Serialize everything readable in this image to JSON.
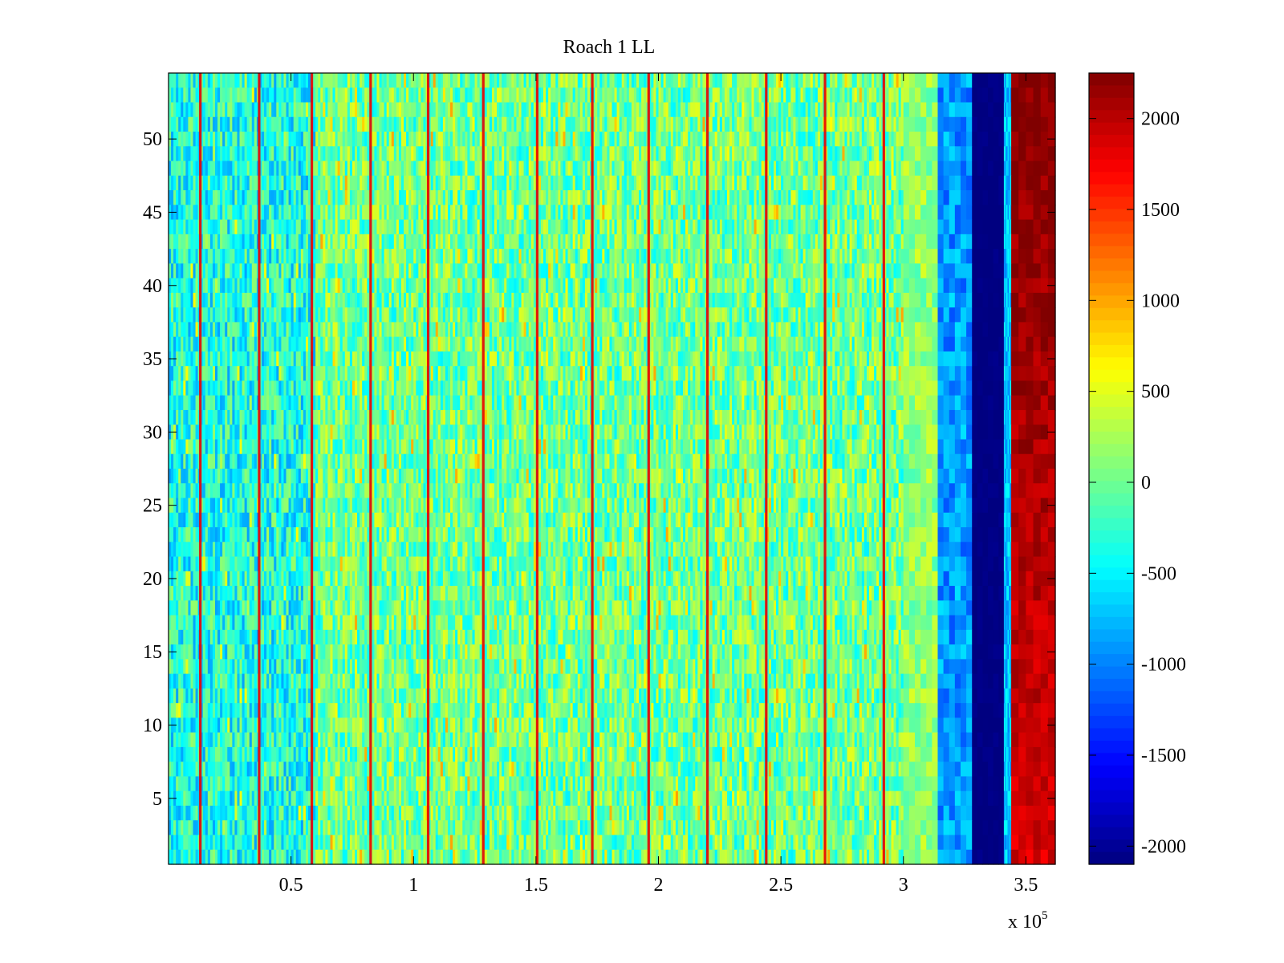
{
  "chart_data": {
    "type": "heatmap",
    "title": "Roach 1 LL",
    "xlabel": "",
    "ylabel": "",
    "x_range": [
      0,
      362000
    ],
    "y_range": [
      0.5,
      54.5
    ],
    "x_ticks": [
      50000,
      100000,
      150000,
      200000,
      250000,
      300000,
      350000
    ],
    "x_tick_labels": [
      "0.5",
      "1",
      "1.5",
      "2",
      "2.5",
      "3",
      "3.5"
    ],
    "x_exponent_label": "x 10",
    "x_exponent": "5",
    "y_ticks": [
      5,
      10,
      15,
      20,
      25,
      30,
      35,
      40,
      45,
      50
    ],
    "y_tick_labels": [
      "5",
      "10",
      "15",
      "20",
      "25",
      "30",
      "35",
      "40",
      "45",
      "50"
    ],
    "rows": 54,
    "colormap": "jet",
    "color_range": [
      -2100,
      2250
    ],
    "colorbar_ticks": [
      2000,
      1500,
      1000,
      500,
      0,
      -500,
      -1000,
      -1500,
      -2000
    ],
    "colorbar_tick_labels": [
      "2000",
      "1500",
      "1000",
      "500",
      "0",
      "-500",
      "-1000",
      "-1500",
      "-2000"
    ],
    "background_level_range": [
      -700,
      300
    ],
    "stripe_positions_x": [
      13000,
      37000,
      58500,
      82500,
      106000,
      128500,
      150500,
      173000,
      196000,
      220000,
      244000,
      268000,
      292000
    ],
    "stripe_level": 1800,
    "regions": [
      {
        "x_start": 0,
        "x_end": 60000,
        "level": -350,
        "note": "left noisy region, bluer"
      },
      {
        "x_start": 60000,
        "x_end": 300000,
        "level": 0,
        "note": "main noisy region"
      },
      {
        "x_start": 300000,
        "x_end": 314000,
        "level": 150,
        "note": "yellow-green band"
      },
      {
        "x_start": 314000,
        "x_end": 328000,
        "level": -900,
        "note": "light blue band"
      },
      {
        "x_start": 328000,
        "x_end": 341000,
        "level": -2100,
        "note": "dark blue band"
      },
      {
        "x_start": 341000,
        "x_end": 344000,
        "level": -700,
        "note": "cyan sliver"
      },
      {
        "x_start": 344000,
        "x_end": 362000,
        "level_bottom": 1700,
        "level_top": 2250,
        "note": "dark red band"
      }
    ]
  }
}
